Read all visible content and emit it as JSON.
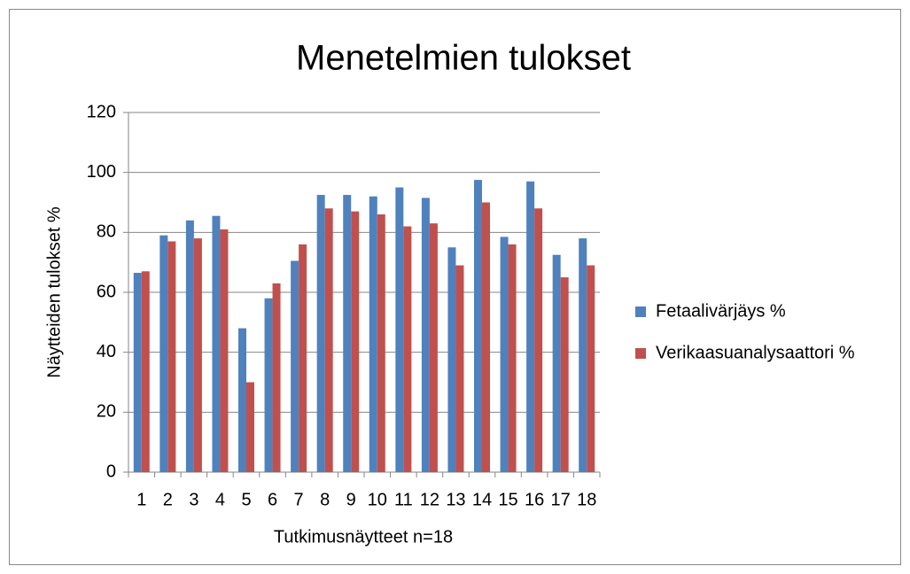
{
  "chart_data": {
    "type": "bar",
    "title": "Menetelmien tulokset",
    "x_label": "Tutkimusnäytteet n=18",
    "y_label": "Näytteiden tulokset %",
    "categories": [
      "1",
      "2",
      "3",
      "4",
      "5",
      "6",
      "7",
      "8",
      "9",
      "10",
      "11",
      "12",
      "13",
      "14",
      "15",
      "16",
      "17",
      "18"
    ],
    "series": [
      {
        "name": "Fetaalivärjäys %",
        "color": "#4f81bd",
        "values": [
          66.5,
          79,
          84,
          85.5,
          48,
          58,
          70.5,
          92.5,
          92.5,
          92,
          95,
          91.5,
          75,
          97.5,
          78.5,
          97,
          72.5,
          78
        ]
      },
      {
        "name": "Verikaasuanalysaattori %",
        "color": "#c0504d",
        "values": [
          67,
          77,
          78,
          81,
          30,
          63,
          76,
          88,
          87,
          86,
          82,
          83,
          69,
          90,
          76,
          88,
          65,
          69
        ]
      }
    ],
    "ylim": [
      0,
      120
    ],
    "yticks": [
      0,
      20,
      40,
      60,
      80,
      100,
      120
    ],
    "grid": true,
    "legend": "right"
  }
}
